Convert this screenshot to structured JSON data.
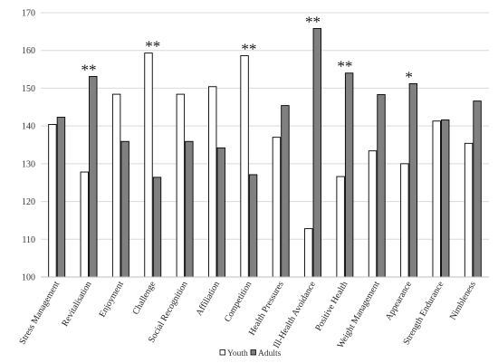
{
  "chart_data": {
    "type": "bar",
    "categories": [
      "Stress Management",
      "Revitalisation",
      "Enjoyment",
      "Challenge",
      "Social Recognition",
      "Affiliation",
      "Competition",
      "Health Pressures",
      "Ill-Health Avoidance",
      "Positive Health",
      "Weight Management",
      "Appearance",
      "Strength Endurance",
      "Nimbleness"
    ],
    "series": [
      {
        "name": "Youth",
        "color": "#ffffff",
        "values": [
          140.4,
          127.8,
          148.4,
          159.3,
          148.4,
          150.4,
          158.6,
          137.0,
          112.8,
          126.6,
          133.4,
          130.0,
          141.3,
          135.4
        ]
      },
      {
        "name": "Adults",
        "color": "#808080",
        "values": [
          142.3,
          153.1,
          135.9,
          126.4,
          135.9,
          134.2,
          127.1,
          145.4,
          165.8,
          154.0,
          148.3,
          151.2,
          141.6,
          146.6
        ]
      }
    ],
    "significance": [
      "",
      "**",
      "",
      "**",
      "",
      "",
      "**",
      "",
      "**",
      "**",
      "",
      "*",
      "",
      ""
    ],
    "ylim": [
      100,
      170
    ],
    "yticks": [
      "100",
      "110",
      "120",
      "130",
      "140",
      "150",
      "160",
      "170"
    ],
    "grid": true,
    "legend_position": "bottom-center"
  }
}
